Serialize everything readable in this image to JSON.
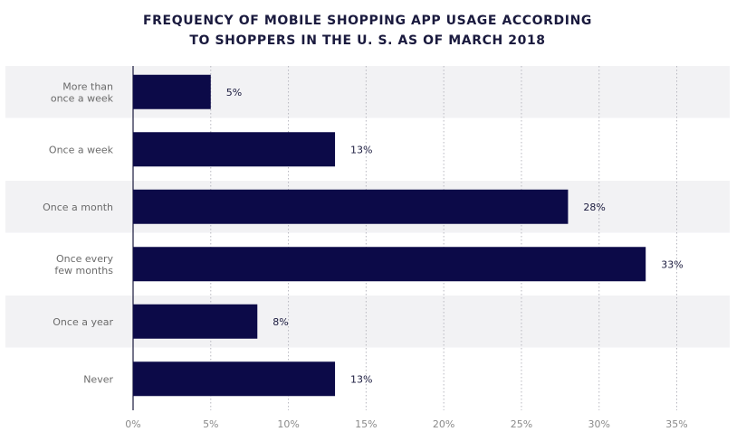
{
  "chart_data": {
    "type": "bar",
    "orientation": "horizontal",
    "title_lines": [
      "FREQUENCY OF MOBILE SHOPPING APP USAGE ACCORDING",
      "TO SHOPPERS IN THE U. S. AS OF MARCH 2018"
    ],
    "categories": [
      [
        "More than",
        "once a week"
      ],
      [
        "Once a week"
      ],
      [
        "Once a month"
      ],
      [
        "Once every",
        "few months"
      ],
      [
        "Once a year"
      ],
      [
        "Never"
      ]
    ],
    "values": [
      5,
      13,
      28,
      33,
      8,
      13
    ],
    "value_labels": [
      "5%",
      "13%",
      "28%",
      "33%",
      "8%",
      "13%"
    ],
    "xlim": [
      0,
      38
    ],
    "ticks": [
      0,
      5,
      10,
      15,
      20,
      25,
      30,
      35
    ],
    "tick_labels": [
      "0%",
      "5%",
      "10%",
      "15%",
      "20%",
      "25%",
      "30%",
      "35%"
    ],
    "grid": "vertical dotted",
    "bar_color": "#0c0a48",
    "band_color": "#f2f2f4"
  }
}
